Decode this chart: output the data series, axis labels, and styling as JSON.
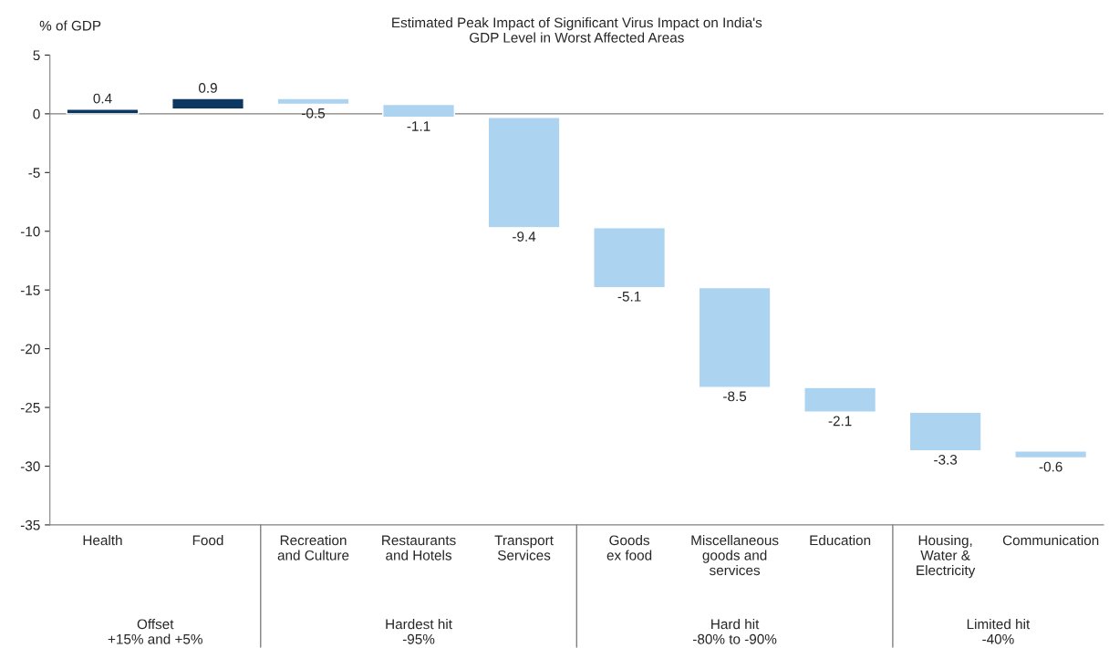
{
  "chart_data": {
    "type": "bar",
    "title": "Estimated Peak Impact of Significant Virus Impact on India's\nGDP Level in Worst Affected Areas",
    "ylabel": "% of GDP",
    "categories": [
      "Health",
      "Food",
      "Recreation\nand Culture",
      "Restaurants\nand Hotels",
      "Transport\nServices",
      "Goods\nex food",
      "Miscellaneous\ngoods and\nservices",
      "Education",
      "Housing,\nWater &\nElectricity",
      "Communication"
    ],
    "values": [
      0.4,
      0.9,
      -0.5,
      -1.1,
      -9.4,
      -5.1,
      -8.5,
      -2.1,
      -3.3,
      -0.6
    ],
    "base": [
      0,
      0.4,
      1.3,
      0.8,
      -0.3,
      -9.7,
      -14.8,
      -23.3,
      -25.4,
      -28.7
    ],
    "colors": [
      "#0b3763",
      "#0b3763",
      "#acd3f0",
      "#acd3f0",
      "#acd3f0",
      "#acd3f0",
      "#acd3f0",
      "#acd3f0",
      "#acd3f0",
      "#acd3f0"
    ],
    "data_labels": true,
    "ylim": [
      -35,
      5
    ],
    "yticks": [
      -35,
      -30,
      -25,
      -20,
      -15,
      -10,
      -5,
      0,
      5
    ],
    "ref_lines": [
      {
        "axis": "y",
        "value": 0,
        "color": "#808080"
      }
    ],
    "annotations": [
      "Offset\n+15% and +5%",
      "Hardest hit\n-95%",
      "Hard hit\n-80% to -90%",
      "Limited hit\n-40%"
    ],
    "grid": false,
    "legend": false
  }
}
